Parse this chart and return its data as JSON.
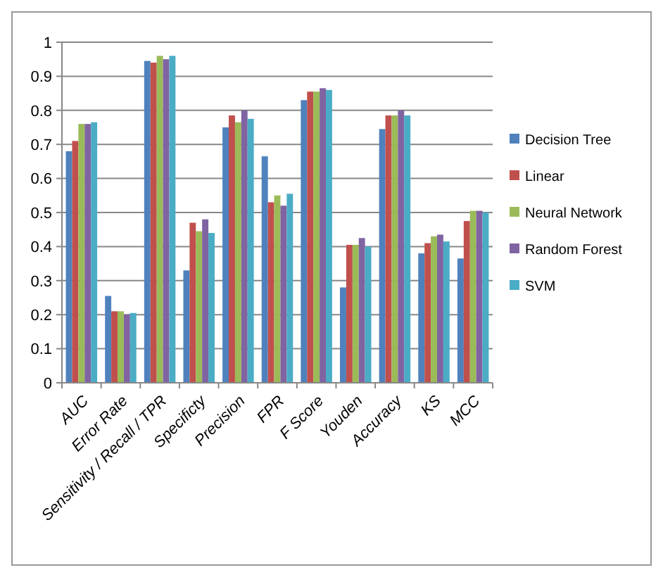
{
  "chart_data": {
    "type": "bar",
    "categories": [
      "AUC",
      "Error Rate",
      "Sensitivity / Recall / TPR",
      "Specificty",
      "Precision",
      "FPR",
      "F Score",
      "Youden",
      "Accuracy",
      "KS",
      "MCC"
    ],
    "series": [
      {
        "name": "Decision Tree",
        "color": "#4f81bd",
        "values": [
          0.68,
          0.255,
          0.945,
          0.33,
          0.75,
          0.665,
          0.83,
          0.28,
          0.745,
          0.38,
          0.365
        ]
      },
      {
        "name": "Linear",
        "color": "#c0504d",
        "values": [
          0.71,
          0.21,
          0.94,
          0.47,
          0.785,
          0.53,
          0.855,
          0.405,
          0.785,
          0.41,
          0.475
        ]
      },
      {
        "name": "Neural Network",
        "color": "#9bbb59",
        "values": [
          0.76,
          0.21,
          0.96,
          0.445,
          0.765,
          0.55,
          0.855,
          0.405,
          0.785,
          0.43,
          0.505
        ]
      },
      {
        "name": "Random Forest",
        "color": "#8064a2",
        "values": [
          0.76,
          0.2,
          0.95,
          0.48,
          0.8,
          0.52,
          0.865,
          0.425,
          0.8,
          0.435,
          0.505
        ]
      },
      {
        "name": "SVM",
        "color": "#4bacc6",
        "values": [
          0.765,
          0.205,
          0.96,
          0.44,
          0.775,
          0.555,
          0.86,
          0.4,
          0.785,
          0.415,
          0.5
        ]
      }
    ],
    "ylim": [
      0,
      1
    ],
    "yticks": [
      0,
      0.1,
      0.2,
      0.3,
      0.4,
      0.5,
      0.6,
      0.7,
      0.8,
      0.9,
      1
    ],
    "grid": "y",
    "legend": "right"
  }
}
